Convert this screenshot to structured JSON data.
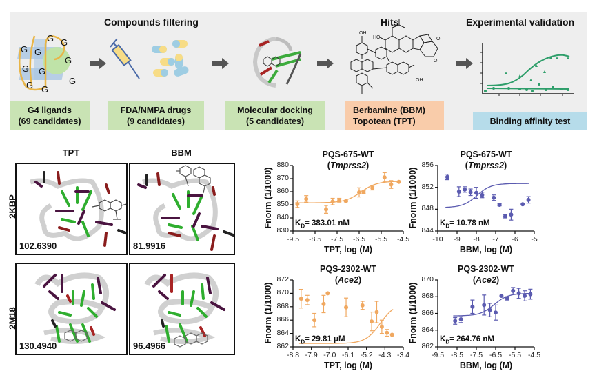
{
  "workflow": {
    "sections": {
      "compounds_filtering": "Compounds filtering",
      "hits": "Hits",
      "experimental_validation": "Experimental validation"
    },
    "stages": [
      {
        "line1": "G4 ligands",
        "line2": "(69 candidates)",
        "color": "#c9e3b4"
      },
      {
        "line1": "FDA/NMPA drugs",
        "line2": "(9 candidates)",
        "color": "#c9e3b4"
      },
      {
        "line1": "Molecular docking",
        "line2": "(5 candidates)",
        "color": "#c9e3b4"
      },
      {
        "line1": "Berbamine (BBM)",
        "line2": "Topotean (TPT)",
        "color": "#f9ccaa"
      },
      {
        "line1": "Binding affinity test",
        "color": "#b6dcea"
      }
    ],
    "g4_letters": [
      "G",
      "G",
      "G",
      "G",
      "G",
      "G",
      "G",
      "G",
      "G",
      "G"
    ],
    "illustrations": [
      "g4-quadruplex-icon",
      "syringe-icon",
      "capsules-icon",
      "docking-structure-icon",
      "chemical-structures-icon",
      "binding-curve-icon"
    ]
  },
  "docking": {
    "columns": [
      "TPT",
      "BBM"
    ],
    "rows": [
      {
        "label": "2KBP",
        "scores": [
          "102.6390",
          "81.9916"
        ]
      },
      {
        "label": "2M18",
        "scores": [
          "130.4940",
          "96.4966"
        ]
      }
    ]
  },
  "chart_data": [
    {
      "type": "scatter",
      "title": "PQS-675-WT",
      "subtitle": "Tmprss2",
      "xlabel": "TPT, log (M)",
      "ylabel": "Fnorm (1/1000)",
      "xlim": [
        -9.5,
        -4.5
      ],
      "ylim": [
        830,
        880
      ],
      "xticks": [
        "-9.5",
        "-8.5",
        "-7.5",
        "-6.5",
        "-5.5",
        "-4.5"
      ],
      "yticks": [
        "830",
        "840",
        "850",
        "860",
        "870",
        "880"
      ],
      "annotation": "383.01 nM",
      "color": "#f0a860",
      "x": [
        -9.3,
        -8.9,
        -8.0,
        -7.7,
        -7.4,
        -7.1,
        -6.5,
        -6.3,
        -5.9,
        -5.35,
        -5.05,
        -4.7
      ],
      "y": [
        850.5,
        854.5,
        846.5,
        852.5,
        853.5,
        852.8,
        859.5,
        859.7,
        862.8,
        871,
        865.5,
        867.5
      ],
      "err": [
        2.5,
        2.5,
        3,
        2.5,
        1.5,
        0.5,
        3.5,
        1,
        1.5,
        3.5,
        3,
        0.5
      ],
      "fit": {
        "bottom": 851.5,
        "top": 868.0,
        "log_kd": -6.42
      },
      "grid": false
    },
    {
      "type": "scatter",
      "title": "PQS-675-WT",
      "subtitle": "Tmprss2",
      "xlabel": "BBM, log (M)",
      "ylabel": "Fnorm (1/1000)",
      "xlim": [
        -10,
        -5
      ],
      "ylim": [
        844,
        856
      ],
      "xticks": [
        "-10",
        "-9",
        "-8",
        "-7",
        "-6",
        "-5"
      ],
      "yticks": [
        "844",
        "848",
        "852",
        "856"
      ],
      "annotation": "10.78 nM",
      "color": "#5b5bb0",
      "x": [
        -9.5,
        -8.9,
        -8.6,
        -8.3,
        -8.0,
        -7.7,
        -7.1,
        -6.8,
        -6.5,
        -6.2,
        -5.6,
        -5.3
      ],
      "y": [
        853.9,
        851.2,
        851.6,
        851.1,
        851.0,
        850.6,
        850.1,
        848.8,
        846.7,
        847.0,
        848.9,
        849.7
      ],
      "err": [
        0.5,
        0.9,
        0.5,
        0.6,
        1.0,
        0.5,
        0.5,
        0.2,
        0.3,
        1.0,
        0.1,
        0.6
      ],
      "fit": {
        "bottom": 848.3,
        "top": 852.7,
        "log_kd": -7.97
      },
      "grid": false
    },
    {
      "type": "scatter",
      "title": "PQS-2302-WT",
      "subtitle": "Ace2",
      "xlabel": "TPT, log (M)",
      "ylabel": "Fnorm (1/1000)",
      "xlim": [
        -8.8,
        -3.4
      ],
      "ylim": [
        862,
        872
      ],
      "xticks": [
        "-8.8",
        "-7.9",
        "-7.0",
        "-6.1",
        "-5.2",
        "-4.3",
        "-3.4"
      ],
      "yticks": [
        "862",
        "864",
        "866",
        "868",
        "870",
        "872"
      ],
      "annotation": "29.81 μM",
      "color": "#f0a860",
      "x": [
        -8.4,
        -8.1,
        -7.75,
        -7.3,
        -7.1,
        -6.2,
        -5.4,
        -4.95,
        -4.7,
        -4.45,
        -4.2,
        -3.95
      ],
      "y": [
        869.2,
        869.0,
        866.0,
        868.4,
        870.0,
        867.9,
        868.2,
        865.8,
        867.2,
        865.0,
        864.1,
        863.8
      ],
      "err": [
        1.4,
        0.7,
        1.0,
        1.3,
        0.1,
        1.4,
        0.6,
        1.4,
        1.6,
        1.0,
        0.5,
        0.1
      ],
      "fit": {
        "bottom": 862.5,
        "top": 868.5,
        "log_kd": -4.53
      },
      "grid": false
    },
    {
      "type": "scatter",
      "title": "PQS-2302-WT",
      "subtitle": "Ace2",
      "xlabel": "BBM, log (M)",
      "ylabel": "Fnorm (1/1000)",
      "xlim": [
        -9.5,
        -4.5
      ],
      "ylim": [
        862,
        870
      ],
      "xticks": [
        "-9.5",
        "-8.5",
        "-7.5",
        "-6.5",
        "-5.5",
        "-4.5"
      ],
      "yticks": [
        "862",
        "864",
        "866",
        "868",
        "870"
      ],
      "annotation": "264.76 nM",
      "color": "#5b5bb0",
      "x": [
        -8.6,
        -8.3,
        -7.7,
        -7.1,
        -6.8,
        -6.5,
        -6.2,
        -5.9,
        -5.6,
        -5.3,
        -5.0,
        -4.7
      ],
      "y": [
        865.1,
        865.3,
        866.8,
        867.0,
        866.4,
        866.1,
        868.1,
        867.8,
        868.7,
        868.4,
        868.1,
        868.3
      ],
      "err": [
        0.4,
        0.4,
        0.8,
        1.2,
        0.8,
        0.9,
        0.1,
        0.2,
        0.4,
        0.6,
        0.6,
        0.6
      ],
      "fit": {
        "bottom": 865.7,
        "top": 868.4,
        "log_kd": -6.58
      },
      "grid": false
    }
  ]
}
